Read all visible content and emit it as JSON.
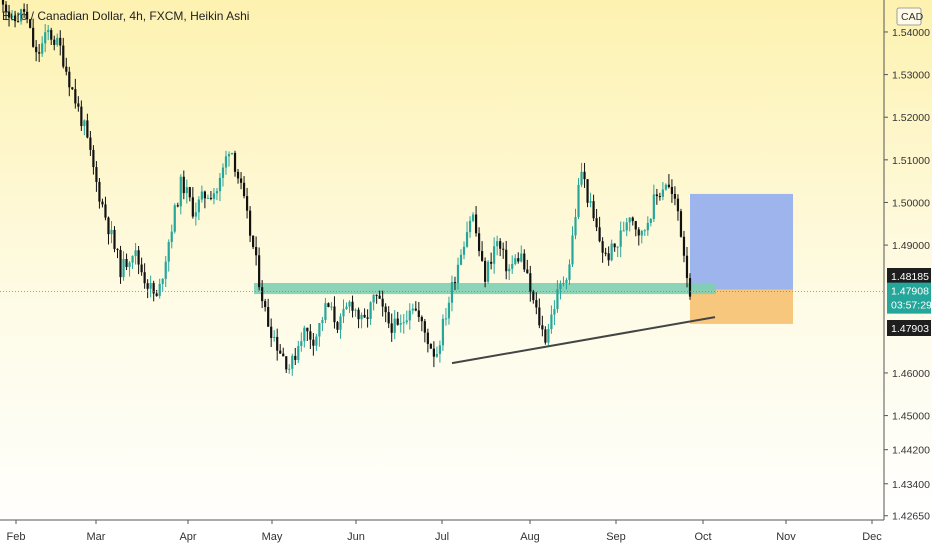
{
  "chart_data": {
    "type": "candlestick",
    "title": "Euro / Canadian Dollar, 4h, FXCM, Heikin Ashi",
    "currency": "CAD",
    "y_ticks": [
      "1.54000",
      "1.53000",
      "1.52000",
      "1.51000",
      "1.50000",
      "1.49000",
      "1.48185",
      "1.47908",
      "03:57:29",
      "1.47903",
      "1.46000",
      "1.45000",
      "1.44200",
      "1.43400",
      "1.42650"
    ],
    "y_tick_values": [
      1.54,
      1.53,
      1.52,
      1.51,
      1.5,
      1.49,
      null,
      null,
      null,
      null,
      1.46,
      1.45,
      1.442,
      1.434,
      1.4265
    ],
    "x_labels": [
      "Feb",
      "Mar",
      "Apr",
      "May",
      "Jun",
      "Jul",
      "Aug",
      "Sep",
      "Oct",
      "Nov",
      "Dec"
    ],
    "ylim": [
      1.4255,
      1.5475
    ],
    "price_path": [
      [
        "Feb",
        1.55
      ],
      [
        "Feb",
        1.542
      ],
      [
        "Feb",
        1.545
      ],
      [
        "Feb",
        1.534
      ],
      [
        "Feb",
        1.54
      ],
      [
        "Feb",
        1.536
      ],
      [
        "Mar",
        1.526
      ],
      [
        "Mar",
        1.517
      ],
      [
        "Mar",
        1.504
      ],
      [
        "Mar",
        1.494
      ],
      [
        "Mar",
        1.484
      ],
      [
        "Mar",
        1.489
      ],
      [
        "Mar",
        1.482
      ],
      [
        "Apr",
        1.477
      ],
      [
        "Apr",
        1.492
      ],
      [
        "Apr",
        1.505
      ],
      [
        "Apr",
        1.498
      ],
      [
        "Apr",
        1.502
      ],
      [
        "Apr",
        1.503
      ],
      [
        "May",
        1.514
      ],
      [
        "May",
        1.502
      ],
      [
        "May",
        1.488
      ],
      [
        "May",
        1.473
      ],
      [
        "May",
        1.466
      ],
      [
        "May",
        1.461
      ],
      [
        "May",
        1.47
      ],
      [
        "May",
        1.468
      ],
      [
        "Jun",
        1.476
      ],
      [
        "Jun",
        1.471
      ],
      [
        "Jun",
        1.477
      ],
      [
        "Jun",
        1.471
      ],
      [
        "Jun",
        1.478
      ],
      [
        "Jun",
        1.472
      ],
      [
        "Jul",
        1.47
      ],
      [
        "Jul",
        1.477
      ],
      [
        "Jul",
        1.47
      ],
      [
        "Jul",
        1.464
      ],
      [
        "Jul",
        1.476
      ],
      [
        "Jul",
        1.488
      ],
      [
        "Jul",
        1.498
      ],
      [
        "Jul",
        1.482
      ],
      [
        "Aug",
        1.491
      ],
      [
        "Aug",
        1.484
      ],
      [
        "Aug",
        1.488
      ],
      [
        "Aug",
        1.477
      ],
      [
        "Aug",
        1.468
      ],
      [
        "Aug",
        1.478
      ],
      [
        "Aug",
        1.485
      ],
      [
        "Sep",
        1.508
      ],
      [
        "Sep",
        1.496
      ],
      [
        "Sep",
        1.487
      ],
      [
        "Sep",
        1.49
      ],
      [
        "Sep",
        1.498
      ],
      [
        "Sep",
        1.492
      ],
      [
        "Sep",
        1.5
      ],
      [
        "Sep",
        1.505
      ],
      [
        "Sep",
        1.498
      ],
      [
        "Oct",
        1.479
      ]
    ],
    "support_zone": {
      "from": 1.4785,
      "to": 1.4811
    },
    "trendline": {
      "start": [
        "Jul",
        1.4623
      ],
      "end": [
        "Oct",
        1.4731
      ]
    },
    "position_tool": {
      "entry": 1.4795,
      "target": 1.502,
      "stop": 1.4715
    },
    "last_price": 1.47908,
    "colors": {
      "up": "#26a69a",
      "down": "#111111",
      "support": "#7ecfb2",
      "target": "#9db4ec",
      "stop": "#f7c77e",
      "trendline": "#444444",
      "label_dark": "#1e1e1e",
      "label_teal": "#24a69a",
      "price_line": "#26a69a"
    }
  }
}
